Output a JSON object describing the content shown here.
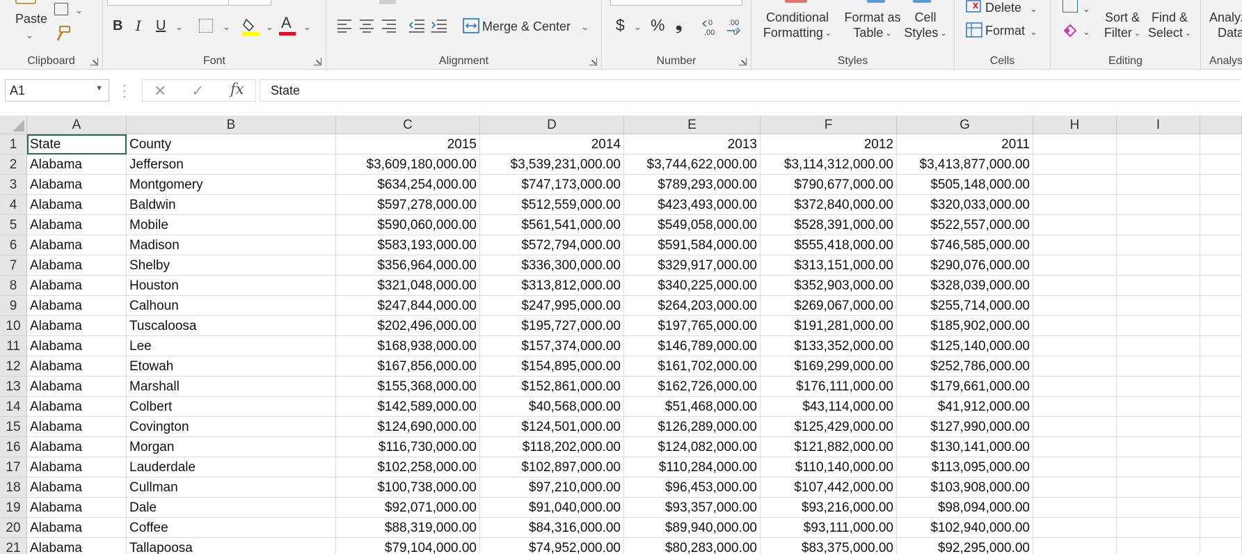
{
  "ribbon": {
    "clipboard": {
      "label": "Clipboard",
      "paste": "Paste"
    },
    "font": {
      "label": "Font",
      "bold": "B",
      "italic": "I",
      "underline": "U",
      "font_color": "A"
    },
    "alignment": {
      "label": "Alignment",
      "merge_center": "Merge & Center"
    },
    "number": {
      "label": "Number",
      "currency": "$",
      "percent": "%",
      "comma": "❟",
      "inc_decimal": ".00",
      "dec_decimal": ".00"
    },
    "styles": {
      "label": "Styles",
      "conditional_formatting": [
        "Conditional",
        "Formatting"
      ],
      "format_as_table": [
        "Format as",
        "Table"
      ],
      "cell_styles": [
        "Cell",
        "Styles"
      ]
    },
    "cells": {
      "label": "Cells",
      "delete": "Delete",
      "format": "Format"
    },
    "editing": {
      "label": "Editing",
      "sort_filter": [
        "Sort &",
        "Filter"
      ],
      "find_select": [
        "Find &",
        "Select"
      ]
    },
    "analysis": {
      "label": "Analys",
      "analyze_data": [
        "Analyz",
        "Data"
      ]
    }
  },
  "formula_bar": {
    "name_box": "A1",
    "cancel": "✕",
    "enter": "✓",
    "fx": "fx",
    "content": "State"
  },
  "grid": {
    "columns": [
      "A",
      "B",
      "C",
      "D",
      "E",
      "F",
      "G",
      "H",
      "I"
    ],
    "rows": [
      [
        "State",
        "County",
        "2015",
        "2014",
        "2013",
        "2012",
        "2011"
      ],
      [
        "Alabama",
        "Jefferson",
        "$3,609,180,000.00",
        "$3,539,231,000.00",
        "$3,744,622,000.00",
        "$3,114,312,000.00",
        "$3,413,877,000.00"
      ],
      [
        "Alabama",
        "Montgomery",
        "$634,254,000.00",
        "$747,173,000.00",
        "$789,293,000.00",
        "$790,677,000.00",
        "$505,148,000.00"
      ],
      [
        "Alabama",
        "Baldwin",
        "$597,278,000.00",
        "$512,559,000.00",
        "$423,493,000.00",
        "$372,840,000.00",
        "$320,033,000.00"
      ],
      [
        "Alabama",
        "Mobile",
        "$590,060,000.00",
        "$561,541,000.00",
        "$549,058,000.00",
        "$528,391,000.00",
        "$522,557,000.00"
      ],
      [
        "Alabama",
        "Madison",
        "$583,193,000.00",
        "$572,794,000.00",
        "$591,584,000.00",
        "$555,418,000.00",
        "$746,585,000.00"
      ],
      [
        "Alabama",
        "Shelby",
        "$356,964,000.00",
        "$336,300,000.00",
        "$329,917,000.00",
        "$313,151,000.00",
        "$290,076,000.00"
      ],
      [
        "Alabama",
        "Houston",
        "$321,048,000.00",
        "$313,812,000.00",
        "$340,225,000.00",
        "$352,903,000.00",
        "$328,039,000.00"
      ],
      [
        "Alabama",
        "Calhoun",
        "$247,844,000.00",
        "$247,995,000.00",
        "$264,203,000.00",
        "$269,067,000.00",
        "$255,714,000.00"
      ],
      [
        "Alabama",
        "Tuscaloosa",
        "$202,496,000.00",
        "$195,727,000.00",
        "$197,765,000.00",
        "$191,281,000.00",
        "$185,902,000.00"
      ],
      [
        "Alabama",
        "Lee",
        "$168,938,000.00",
        "$157,374,000.00",
        "$146,789,000.00",
        "$133,352,000.00",
        "$125,140,000.00"
      ],
      [
        "Alabama",
        "Etowah",
        "$167,856,000.00",
        "$154,895,000.00",
        "$161,702,000.00",
        "$169,299,000.00",
        "$252,786,000.00"
      ],
      [
        "Alabama",
        "Marshall",
        "$155,368,000.00",
        "$152,861,000.00",
        "$162,726,000.00",
        "$176,111,000.00",
        "$179,661,000.00"
      ],
      [
        "Alabama",
        "Colbert",
        "$142,589,000.00",
        "$40,568,000.00",
        "$51,468,000.00",
        "$43,114,000.00",
        "$41,912,000.00"
      ],
      [
        "Alabama",
        "Covington",
        "$124,690,000.00",
        "$124,501,000.00",
        "$126,289,000.00",
        "$125,429,000.00",
        "$127,990,000.00"
      ],
      [
        "Alabama",
        "Morgan",
        "$116,730,000.00",
        "$118,202,000.00",
        "$124,082,000.00",
        "$121,882,000.00",
        "$130,141,000.00"
      ],
      [
        "Alabama",
        "Lauderdale",
        "$102,258,000.00",
        "$102,897,000.00",
        "$110,284,000.00",
        "$110,140,000.00",
        "$113,095,000.00"
      ],
      [
        "Alabama",
        "Cullman",
        "$100,738,000.00",
        "$97,210,000.00",
        "$96,453,000.00",
        "$107,442,000.00",
        "$103,908,000.00"
      ],
      [
        "Alabama",
        "Dale",
        "$92,071,000.00",
        "$91,040,000.00",
        "$93,357,000.00",
        "$93,216,000.00",
        "$98,094,000.00"
      ],
      [
        "Alabama",
        "Coffee",
        "$88,319,000.00",
        "$84,316,000.00",
        "$89,940,000.00",
        "$93,111,000.00",
        "$102,940,000.00"
      ],
      [
        "Alabama",
        "Tallapoosa",
        "$79,104,000.00",
        "$74,952,000.00",
        "$80,283,000.00",
        "$83,375,000.00",
        "$92,295,000.00"
      ]
    ]
  },
  "colors": {
    "selection": "#217346",
    "font_color_bar": "#e81123",
    "highlight_bar": "#ffff00"
  }
}
